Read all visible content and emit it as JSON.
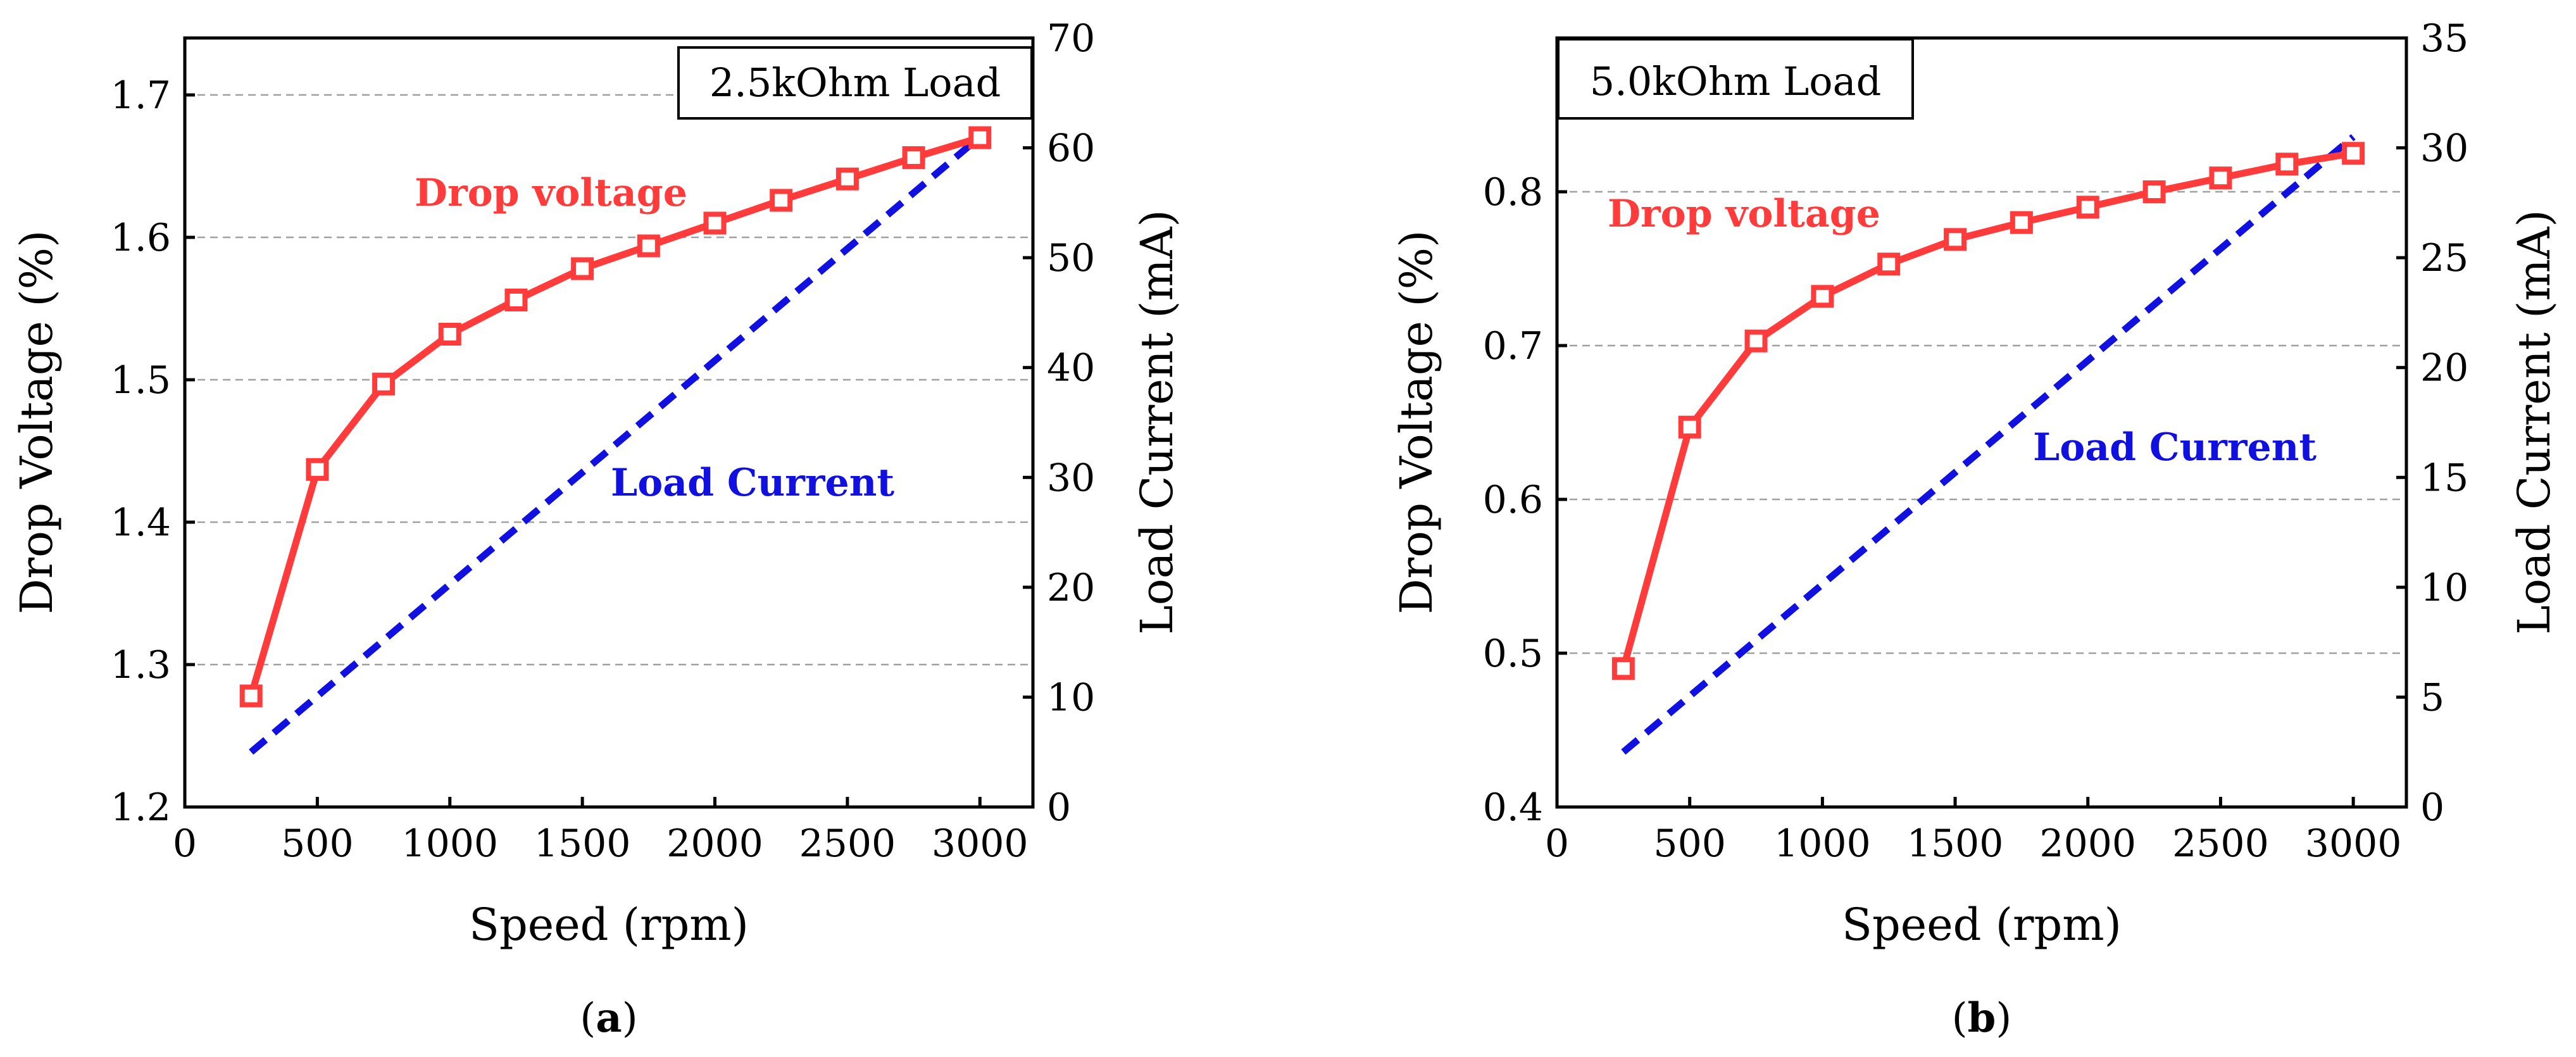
{
  "chart_data": [
    {
      "type": "line",
      "panel_label": "a",
      "title": "2.5kOhm Load",
      "xlabel": "Speed (rpm)",
      "ylabel_left": "Drop Voltage (%)",
      "ylabel_right": "Load Current (mA)",
      "xlim": [
        0,
        3200
      ],
      "ylim_left": [
        1.2,
        1.74
      ],
      "ylim_right": [
        0,
        70
      ],
      "xticks": [
        "0",
        "500",
        "1000",
        "1500",
        "2000",
        "2500",
        "3000"
      ],
      "yticks_left": [
        "1.2",
        "1.3",
        "1.4",
        "1.5",
        "1.6",
        "1.7"
      ],
      "yticks_right": [
        "0",
        "10",
        "20",
        "30",
        "40",
        "50",
        "60",
        "70"
      ],
      "x": [
        250,
        500,
        750,
        1000,
        1250,
        1500,
        1750,
        2000,
        2250,
        2500,
        2750,
        3000
      ],
      "series": [
        {
          "name": "Drop voltage",
          "axis": "left",
          "color": "#ff3b3b",
          "marker": "square",
          "values": [
            1.278,
            1.437,
            1.497,
            1.532,
            1.556,
            1.578,
            1.594,
            1.61,
            1.626,
            1.641,
            1.656,
            1.67
          ]
        },
        {
          "name": "Load Current",
          "axis": "right",
          "color": "#1010e0",
          "style": "dashed",
          "endpoints_x": [
            250,
            3000
          ],
          "endpoints": [
            5,
            61
          ]
        }
      ]
    },
    {
      "type": "line",
      "panel_label": "b",
      "title": "5.0kOhm Load",
      "xlabel": "Speed (rpm)",
      "ylabel_left": "Drop Voltage (%)",
      "ylabel_right": "Load Current (mA)",
      "xlim": [
        0,
        3200
      ],
      "ylim_left": [
        0.4,
        0.9
      ],
      "ylim_right": [
        0,
        35
      ],
      "xticks": [
        "0",
        "500",
        "1000",
        "1500",
        "2000",
        "2500",
        "3000"
      ],
      "yticks_left": [
        "0.4",
        "0.5",
        "0.6",
        "0.7",
        "0.8"
      ],
      "yticks_right": [
        "0",
        "5",
        "10",
        "15",
        "20",
        "25",
        "30",
        "35"
      ],
      "x": [
        250,
        500,
        750,
        1000,
        1250,
        1500,
        1750,
        2000,
        2250,
        2500,
        2750,
        3000
      ],
      "series": [
        {
          "name": "Drop voltage",
          "axis": "left",
          "color": "#ff3b3b",
          "marker": "square",
          "values": [
            0.49,
            0.647,
            0.703,
            0.732,
            0.753,
            0.769,
            0.78,
            0.79,
            0.8,
            0.809,
            0.818,
            0.825
          ]
        },
        {
          "name": "Load Current",
          "axis": "right",
          "color": "#1010e0",
          "style": "dashed",
          "endpoints_x": [
            250,
            3000
          ],
          "endpoints": [
            2.5,
            30.5
          ]
        }
      ]
    }
  ]
}
